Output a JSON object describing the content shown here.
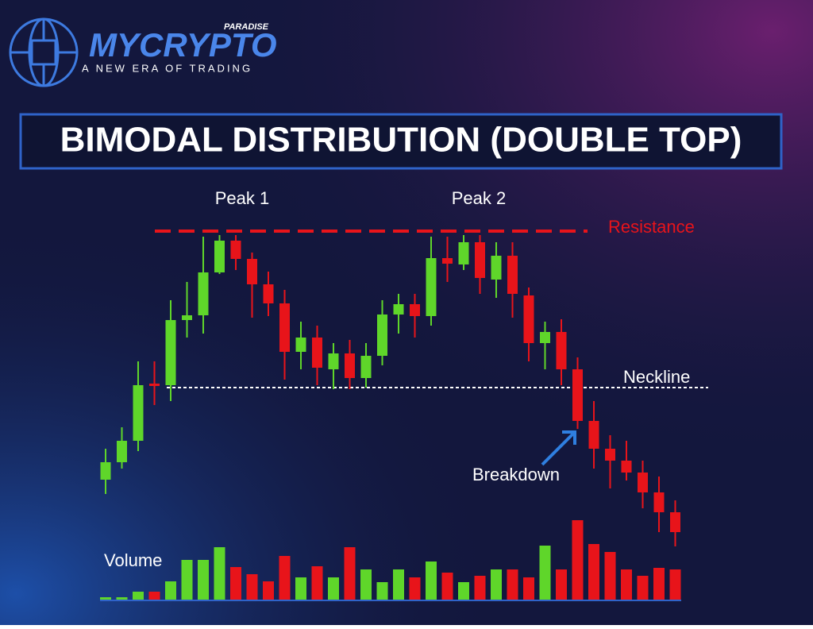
{
  "header": {
    "brand": "MYCRYPTO",
    "brand_badge": "PARADISE",
    "tagline": "A NEW ERA OF TRADING"
  },
  "chart_data": {
    "type": "candlestick",
    "title": "BIMODAL DISTRIBUTION (DOUBLE TOP)",
    "up_color": "#5fd62a",
    "down_color": "#e8141a",
    "open": [
      196,
      218,
      245,
      317,
      315,
      397,
      403,
      457,
      497,
      474,
      442,
      418,
      357,
      375,
      335,
      355,
      324,
      352,
      404,
      417,
      402,
      475,
      467,
      495,
      448,
      478,
      428,
      368,
      382,
      335,
      270,
      235,
      220,
      205,
      180,
      155
    ],
    "close": [
      218,
      245,
      315,
      314,
      397,
      403,
      457,
      497,
      474,
      442,
      418,
      357,
      375,
      337,
      355,
      324,
      352,
      404,
      417,
      402,
      475,
      468,
      495,
      450,
      478,
      430,
      368,
      382,
      335,
      270,
      235,
      220,
      205,
      180,
      155,
      130
    ],
    "high": [
      235,
      262,
      345,
      345,
      422,
      445,
      502,
      504,
      504,
      482,
      458,
      435,
      395,
      390,
      368,
      372,
      368,
      422,
      430,
      430,
      502,
      502,
      504,
      504,
      495,
      495,
      438,
      395,
      398,
      350,
      295,
      252,
      245,
      220,
      200,
      170
    ],
    "low": [
      178,
      210,
      232,
      290,
      295,
      375,
      380,
      455,
      460,
      400,
      402,
      322,
      335,
      315,
      310,
      310,
      312,
      340,
      380,
      375,
      390,
      445,
      460,
      430,
      425,
      400,
      345,
      335,
      315,
      260,
      210,
      185,
      195,
      160,
      130,
      112
    ],
    "volume": [
      3,
      3,
      10,
      10,
      23,
      50,
      50,
      66,
      41,
      32,
      23,
      55,
      28,
      42,
      28,
      66,
      38,
      22,
      38,
      28,
      48,
      34,
      22,
      30,
      38,
      38,
      28,
      68,
      38,
      100,
      70,
      60,
      38,
      30,
      40,
      38
    ],
    "resistance": 509,
    "neckline": 312,
    "annotations": {
      "peak1": "Peak 1",
      "peak2": "Peak 2",
      "resistance": "Resistance",
      "neckline": "Neckline",
      "breakdown": "Breakdown",
      "volume": "Volume"
    }
  }
}
